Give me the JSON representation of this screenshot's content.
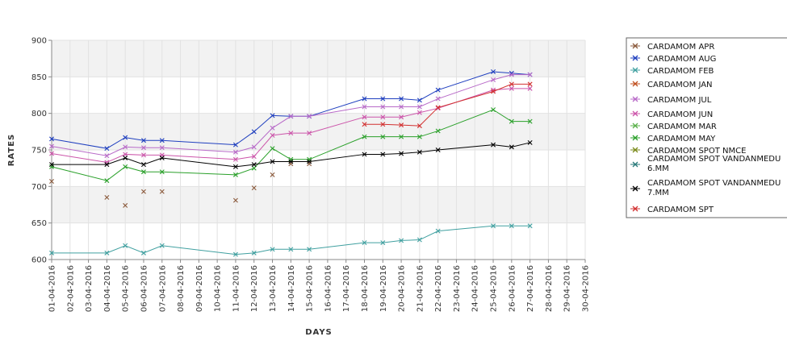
{
  "chart_data": {
    "type": "line",
    "title": "",
    "xlabel": "DAYS",
    "ylabel": "RATES",
    "ylim": [
      600,
      900
    ],
    "yticks": [
      600,
      650,
      700,
      750,
      800,
      850,
      900
    ],
    "grid": true,
    "legend_position": "right",
    "categories": [
      "01-04-2016",
      "02-04-2016",
      "03-04-2016",
      "04-04-2016",
      "05-04-2016",
      "06-04-2016",
      "07-04-2016",
      "08-04-2016",
      "09-04-2016",
      "10-04-2016",
      "11-04-2016",
      "12-04-2016",
      "13-04-2016",
      "14-04-2016",
      "15-04-2016",
      "16-04-2016",
      "17-04-2016",
      "18-04-2016",
      "19-04-2016",
      "20-04-2016",
      "21-04-2016",
      "22-04-2016",
      "23-04-2016",
      "24-04-2016",
      "25-04-2016",
      "26-04-2016",
      "27-04-2016",
      "28-04-2016",
      "29-04-2016",
      "30-04-2016"
    ],
    "series": [
      {
        "name": "CARDAMOM APR",
        "color": "#8b5a3c",
        "lines": false,
        "values": [
          707,
          null,
          null,
          685,
          674,
          693,
          693,
          null,
          null,
          null,
          681,
          698,
          716,
          731,
          731,
          null,
          null,
          null,
          null,
          null,
          null,
          null,
          null,
          null,
          null,
          null,
          null,
          null,
          null,
          null
        ]
      },
      {
        "name": "CARDAMOM AUG",
        "color": "#1f3fbf",
        "lines": true,
        "values": [
          765,
          null,
          null,
          752,
          767,
          763,
          763,
          null,
          null,
          null,
          757,
          775,
          797,
          796,
          796,
          null,
          null,
          820,
          820,
          820,
          818,
          832,
          null,
          null,
          857,
          855,
          853,
          null,
          null,
          null
        ]
      },
      {
        "name": "CARDAMOM FEB",
        "color": "#40a0a0",
        "lines": true,
        "values": [
          609,
          null,
          null,
          609,
          619,
          609,
          619,
          null,
          null,
          null,
          607,
          609,
          614,
          614,
          614,
          null,
          null,
          623,
          623,
          626,
          627,
          639,
          null,
          null,
          646,
          646,
          646,
          null,
          null,
          null
        ]
      },
      {
        "name": "CARDAMOM JAN",
        "color": "#c05020",
        "lines": false,
        "values": [
          null,
          null,
          null,
          null,
          null,
          null,
          null,
          null,
          null,
          null,
          null,
          null,
          null,
          null,
          null,
          null,
          null,
          null,
          null,
          null,
          null,
          null,
          null,
          null,
          null,
          null,
          null,
          null,
          null,
          null
        ]
      },
      {
        "name": "CARDAMOM JUL",
        "color": "#b86ac8",
        "lines": true,
        "values": [
          755,
          null,
          null,
          742,
          754,
          753,
          753,
          null,
          null,
          null,
          747,
          754,
          780,
          796,
          796,
          null,
          null,
          809,
          809,
          809,
          809,
          820,
          null,
          null,
          846,
          853,
          853,
          null,
          null,
          null
        ]
      },
      {
        "name": "CARDAMOM JUN",
        "color": "#cc55aa",
        "lines": true,
        "values": [
          745,
          null,
          null,
          733,
          744,
          743,
          743,
          null,
          null,
          null,
          737,
          741,
          770,
          773,
          773,
          null,
          null,
          795,
          795,
          795,
          801,
          807,
          null,
          null,
          832,
          834,
          834,
          null,
          null,
          null
        ]
      },
      {
        "name": "CARDAMOM MAR",
        "color": "#5ab04a",
        "lines": false,
        "values": [
          null,
          null,
          null,
          null,
          null,
          null,
          null,
          null,
          null,
          null,
          null,
          null,
          null,
          null,
          null,
          null,
          null,
          null,
          null,
          null,
          null,
          null,
          null,
          null,
          null,
          null,
          null,
          null,
          null,
          null
        ]
      },
      {
        "name": "CARDAMOM MAY",
        "color": "#2aa02a",
        "lines": true,
        "values": [
          727,
          null,
          null,
          708,
          727,
          720,
          720,
          null,
          null,
          null,
          716,
          725,
          752,
          737,
          737,
          null,
          null,
          768,
          768,
          768,
          768,
          776,
          null,
          null,
          805,
          789,
          789,
          null,
          null,
          null
        ]
      },
      {
        "name": "CARDAMOM SPOT NMCE",
        "color": "#7a8a1a",
        "lines": false,
        "values": [
          null,
          null,
          null,
          null,
          null,
          null,
          null,
          null,
          null,
          null,
          null,
          null,
          null,
          null,
          null,
          null,
          null,
          null,
          null,
          null,
          null,
          null,
          null,
          null,
          null,
          null,
          null,
          null,
          null,
          null
        ]
      },
      {
        "name": "CARDAMOM SPOT VANDANMEDU 6.MM",
        "color": "#2a7a7a",
        "lines": false,
        "values": [
          null,
          null,
          null,
          null,
          null,
          null,
          null,
          null,
          null,
          null,
          null,
          null,
          null,
          null,
          null,
          null,
          null,
          null,
          null,
          null,
          null,
          null,
          null,
          null,
          null,
          null,
          null,
          null,
          null,
          null
        ]
      },
      {
        "name": "CARDAMOM SPOT VANDANMEDU 7.MM",
        "color": "#000000",
        "lines": true,
        "values": [
          730,
          null,
          null,
          730,
          739,
          730,
          739,
          null,
          null,
          null,
          727,
          730,
          734,
          734,
          734,
          null,
          null,
          744,
          744,
          745,
          747,
          750,
          null,
          null,
          757,
          754,
          760,
          null,
          null,
          null
        ]
      },
      {
        "name": "CARDAMOM SPT",
        "color": "#d23030",
        "lines": true,
        "values": [
          null,
          null,
          null,
          null,
          null,
          null,
          null,
          null,
          null,
          null,
          null,
          null,
          null,
          null,
          null,
          null,
          null,
          785,
          785,
          784,
          783,
          808,
          null,
          null,
          830,
          840,
          840,
          null,
          null,
          null
        ]
      }
    ],
    "legend_entries": [
      {
        "label": "CARDAMOM APR",
        "color": "#8b5a3c"
      },
      {
        "label": "CARDAMOM AUG",
        "color": "#1f3fbf"
      },
      {
        "label": "CARDAMOM FEB",
        "color": "#40a0a0"
      },
      {
        "label": "CARDAMOM JAN",
        "color": "#c05020"
      },
      {
        "label": "CARDAMOM JUL",
        "color": "#b86ac8"
      },
      {
        "label": "CARDAMOM JUN",
        "color": "#cc55aa"
      },
      {
        "label": "CARDAMOM MAR",
        "color": "#5ab04a"
      },
      {
        "label": "CARDAMOM MAY",
        "color": "#2aa02a"
      },
      {
        "label": "CARDAMOM SPOT NMCE",
        "color": "#7a8a1a"
      },
      {
        "label": "CARDAMOM SPOT VANDANMEDU 6.MM",
        "color": "#2a7a7a",
        "lines": [
          "CARDAMOM SPOT VANDANMEDU",
          "6.MM"
        ]
      },
      {
        "label": "CARDAMOM SPOT VANDANMEDU 7.MM",
        "color": "#000000",
        "lines": [
          "CARDAMOM SPOT VANDANMEDU",
          "7.MM"
        ]
      },
      {
        "label": "CARDAMOM SPT",
        "color": "#d23030"
      }
    ]
  }
}
